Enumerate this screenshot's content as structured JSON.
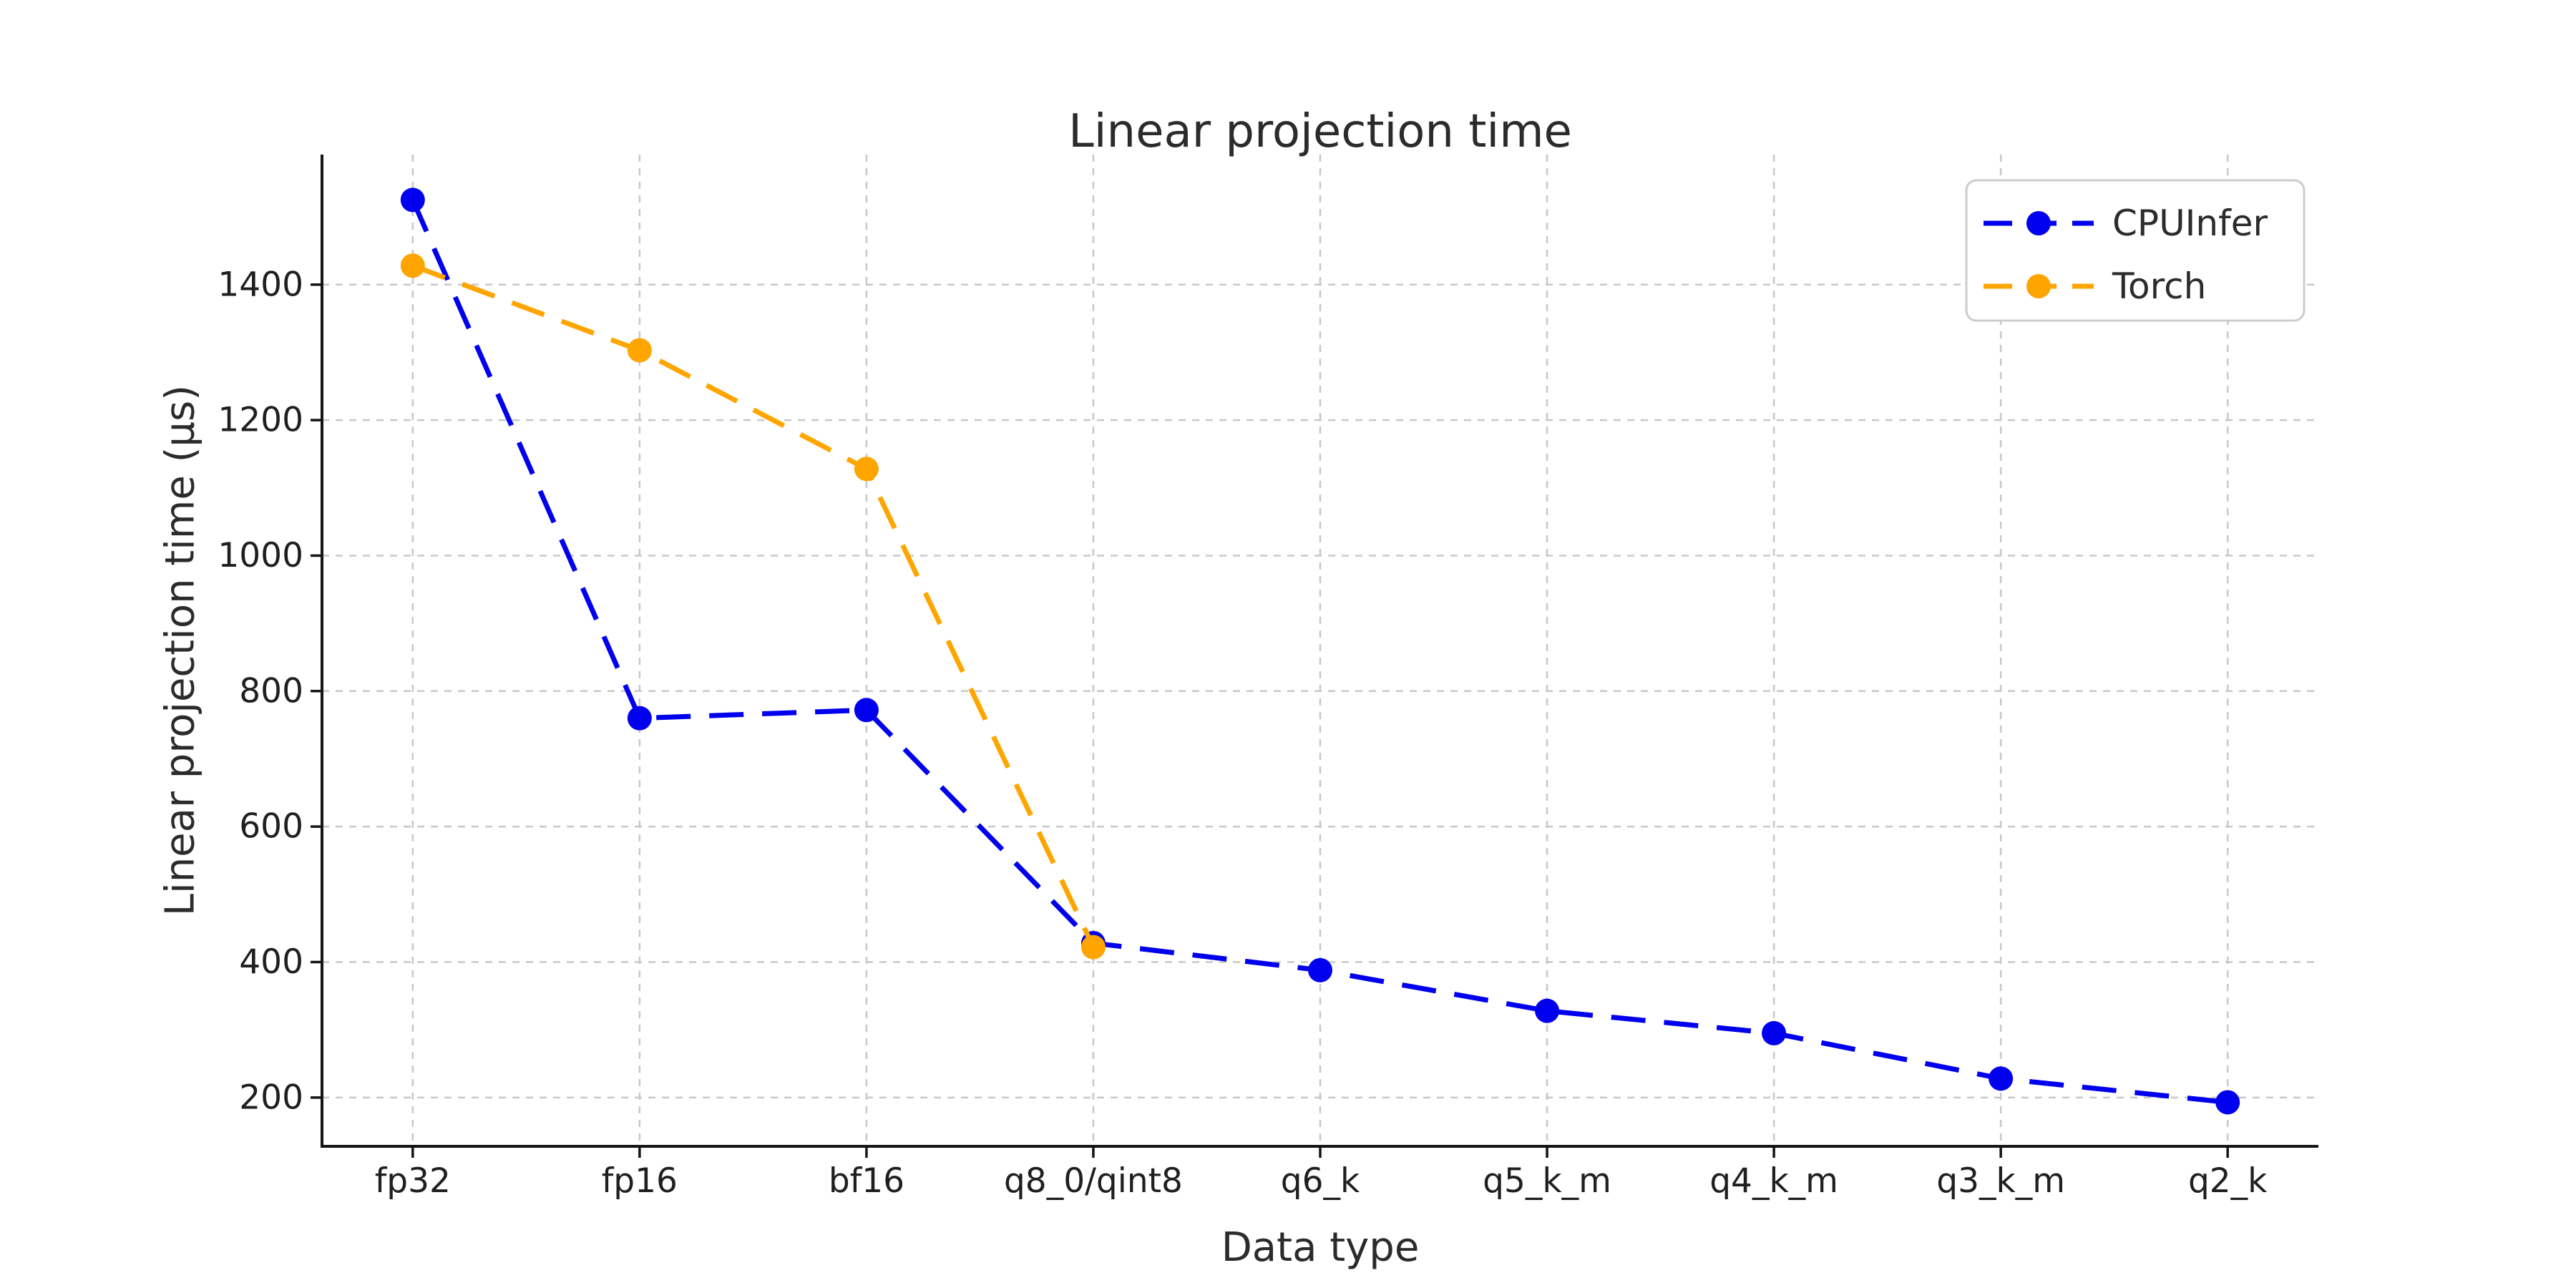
{
  "chart_data": {
    "type": "line",
    "title": "Linear projection time",
    "xlabel": "Data type",
    "ylabel": "Linear projection time (μs)",
    "categories": [
      "fp32",
      "fp16",
      "bf16",
      "q8_0/qint8",
      "q6_k",
      "q5_k_m",
      "q4_k_m",
      "q3_k_m",
      "q2_k"
    ],
    "series": [
      {
        "name": "CPUInfer",
        "color": "#0000ee",
        "values": [
          1525,
          760,
          772,
          428,
          388,
          328,
          295,
          228,
          193
        ]
      },
      {
        "name": "Torch",
        "color": "#ffa500",
        "values": [
          1428,
          1303,
          1128,
          422,
          null,
          null,
          null,
          null,
          null
        ]
      }
    ],
    "yticks": [
      200,
      400,
      600,
      800,
      1000,
      1200,
      1400
    ],
    "ylim": [
      128,
      1592
    ],
    "grid": true,
    "grid_color": "#c8c8c8",
    "spine_color": "#141414",
    "line_style": "dashed",
    "marker": "o",
    "legend_position": "upper right"
  }
}
